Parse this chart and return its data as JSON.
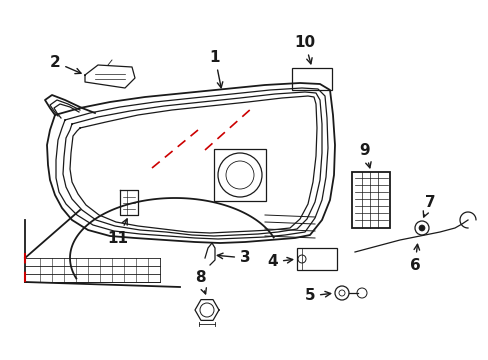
{
  "bg_color": "#ffffff",
  "line_color": "#1a1a1a",
  "red_color": "#cc0000",
  "figsize": [
    4.89,
    3.6
  ],
  "dpi": 100
}
